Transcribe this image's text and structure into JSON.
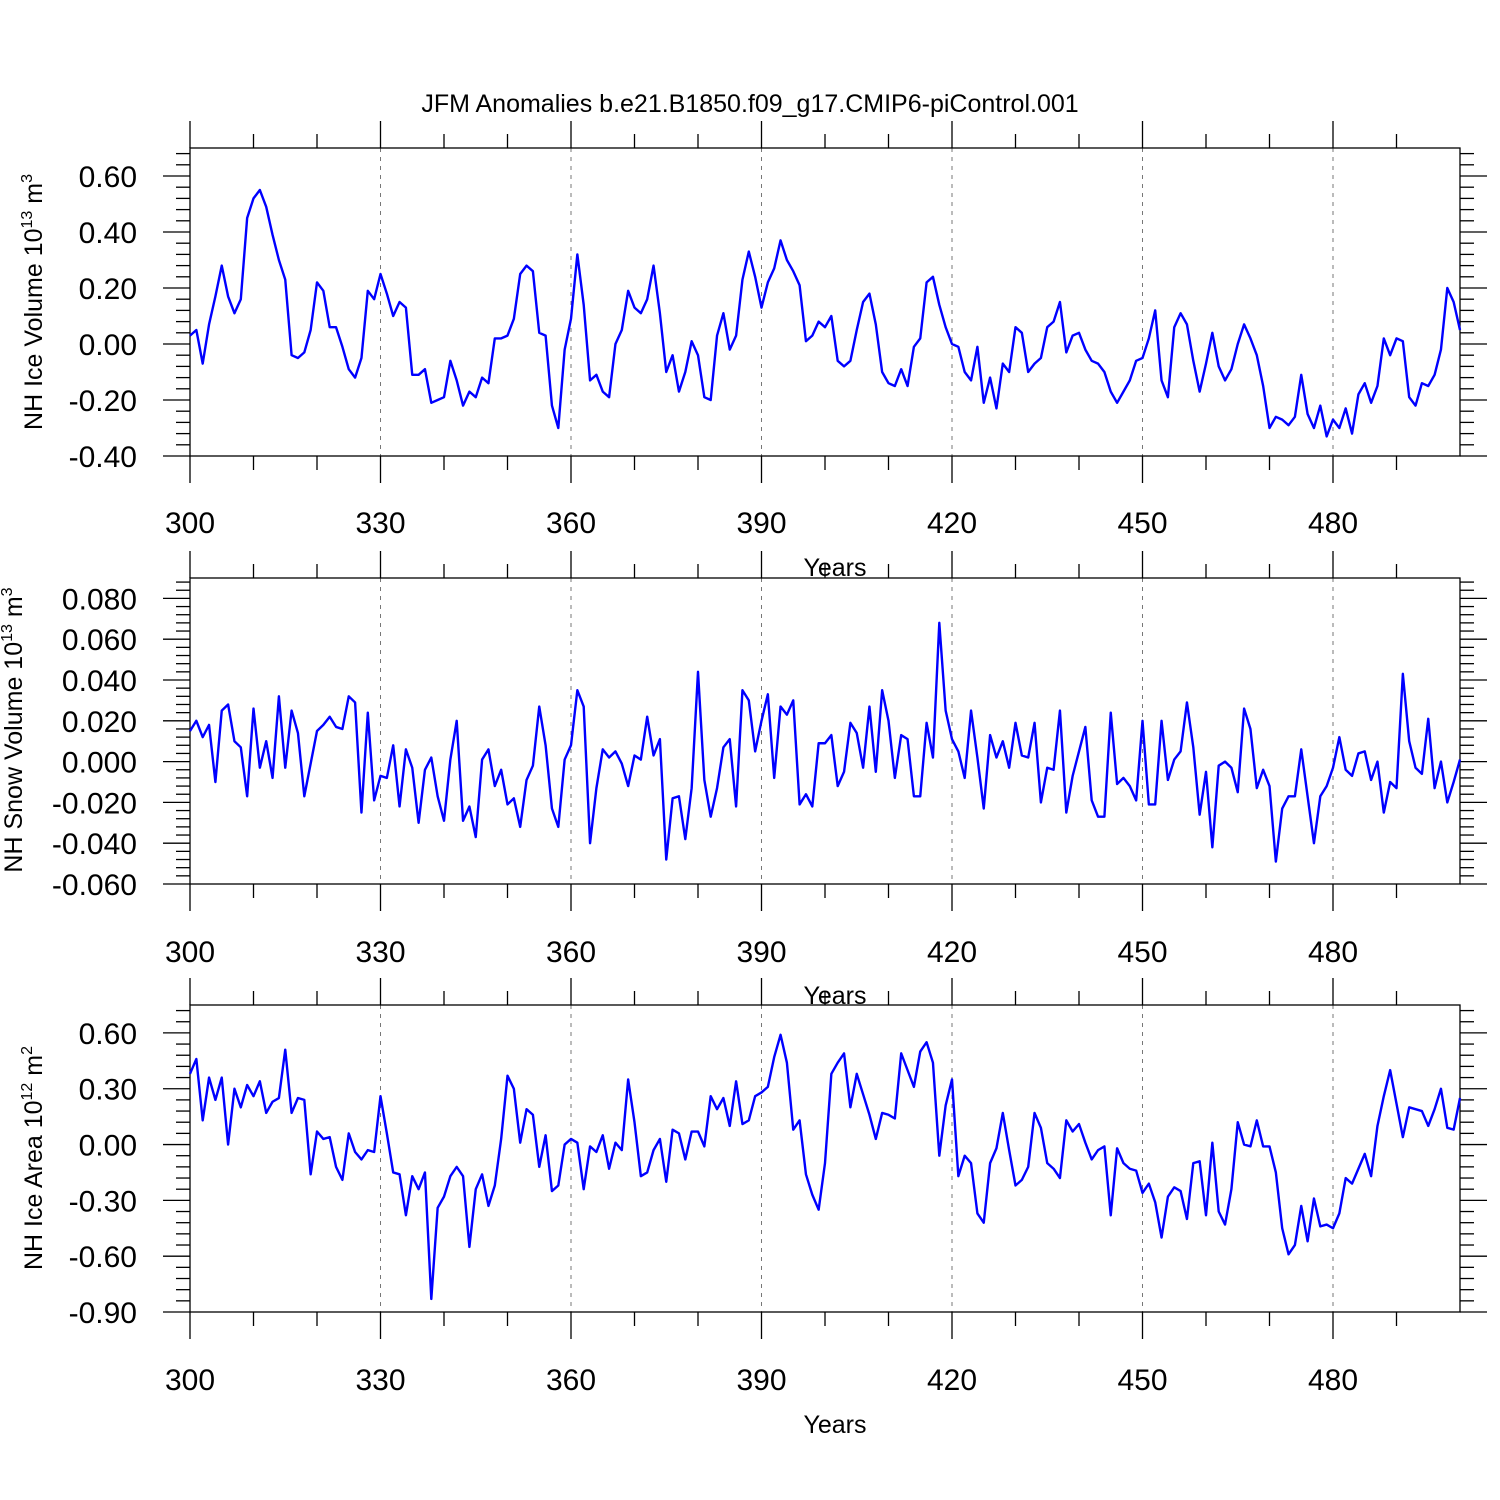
{
  "title": "JFM Anomalies b.e21.B1850.f09_g17.CMIP6-piControl.001",
  "colors": {
    "series": "#0000ff",
    "axis": "#000000",
    "grid": "#777777"
  },
  "chart_data": [
    {
      "type": "line",
      "name": "ice-volume",
      "ylabel_main": "NH Ice Volume 10",
      "ylabel_sup": "13",
      "ylabel_unit": "m",
      "ylabel_unit_sup": "3",
      "xlabel": "Years",
      "xlim": [
        300,
        500
      ],
      "ylim": [
        -0.4,
        0.7
      ],
      "yticks": [
        -0.4,
        -0.2,
        0.0,
        0.2,
        0.4,
        0.6
      ],
      "ytick_labels": [
        "-0.40",
        "-0.20",
        "0.00",
        "0.20",
        "0.40",
        "0.60"
      ],
      "xticks": [
        300,
        330,
        360,
        390,
        420,
        450,
        480
      ],
      "xtick_labels": [
        "300",
        "330",
        "360",
        "390",
        "420",
        "450",
        "480"
      ],
      "grid_x": [
        330,
        360,
        390,
        420,
        450,
        480
      ],
      "x_start": 300,
      "values": [
        0.03,
        0.05,
        -0.07,
        0.07,
        0.17,
        0.28,
        0.17,
        0.11,
        0.16,
        0.45,
        0.52,
        0.55,
        0.49,
        0.39,
        0.3,
        0.23,
        -0.04,
        -0.05,
        -0.03,
        0.05,
        0.22,
        0.19,
        0.06,
        0.06,
        -0.01,
        -0.09,
        -0.12,
        -0.05,
        0.19,
        0.16,
        0.25,
        0.18,
        0.1,
        0.15,
        0.13,
        -0.11,
        -0.11,
        -0.09,
        -0.21,
        -0.2,
        -0.19,
        -0.06,
        -0.13,
        -0.22,
        -0.17,
        -0.19,
        -0.12,
        -0.14,
        0.02,
        0.02,
        0.03,
        0.09,
        0.25,
        0.28,
        0.26,
        0.04,
        0.03,
        -0.22,
        -0.3,
        -0.02,
        0.09,
        0.32,
        0.14,
        -0.13,
        -0.11,
        -0.17,
        -0.19,
        0.0,
        0.05,
        0.19,
        0.13,
        0.11,
        0.16,
        0.28,
        0.11,
        -0.1,
        -0.04,
        -0.17,
        -0.1,
        0.01,
        -0.04,
        -0.19,
        -0.2,
        0.03,
        0.11,
        -0.02,
        0.03,
        0.23,
        0.33,
        0.24,
        0.13,
        0.22,
        0.27,
        0.37,
        0.3,
        0.26,
        0.21,
        0.01,
        0.03,
        0.08,
        0.06,
        0.1,
        -0.06,
        -0.08,
        -0.06,
        0.05,
        0.15,
        0.18,
        0.07,
        -0.1,
        -0.14,
        -0.15,
        -0.09,
        -0.15,
        -0.01,
        0.02,
        0.22,
        0.24,
        0.14,
        0.06,
        0.0,
        -0.01,
        -0.1,
        -0.13,
        -0.01,
        -0.21,
        -0.12,
        -0.23,
        -0.07,
        -0.1,
        0.06,
        0.04,
        -0.1,
        -0.07,
        -0.05,
        0.06,
        0.08,
        0.15,
        -0.03,
        0.03,
        0.04,
        -0.02,
        -0.06,
        -0.07,
        -0.1,
        -0.17,
        -0.21,
        -0.17,
        -0.13,
        -0.06,
        -0.05,
        0.02,
        0.12,
        -0.13,
        -0.19,
        0.06,
        0.11,
        0.07,
        -0.06,
        -0.17,
        -0.07,
        0.04,
        -0.08,
        -0.13,
        -0.09,
        0.0,
        0.07,
        0.02,
        -0.04,
        -0.15,
        -0.3,
        -0.26,
        -0.27,
        -0.29,
        -0.26,
        -0.11,
        -0.25,
        -0.3,
        -0.22,
        -0.33,
        -0.27,
        -0.3,
        -0.23,
        -0.32,
        -0.18,
        -0.14,
        -0.21,
        -0.15,
        0.02,
        -0.04,
        0.02,
        0.01,
        -0.19,
        -0.22,
        -0.14,
        -0.15,
        -0.11,
        -0.02,
        0.2,
        0.15,
        0.05
      ]
    },
    {
      "type": "line",
      "name": "snow-volume",
      "ylabel_main": "NH Snow Volume 10",
      "ylabel_sup": "13",
      "ylabel_unit": "m",
      "ylabel_unit_sup": "3",
      "xlabel": "Years",
      "xlim": [
        300,
        500
      ],
      "ylim": [
        -0.06,
        0.09
      ],
      "yticks": [
        -0.06,
        -0.04,
        -0.02,
        0.0,
        0.02,
        0.04,
        0.06,
        0.08
      ],
      "ytick_labels": [
        "-0.060",
        "-0.040",
        "-0.020",
        "0.000",
        "0.020",
        "0.040",
        "0.060",
        "0.080"
      ],
      "xticks": [
        300,
        330,
        360,
        390,
        420,
        450,
        480
      ],
      "xtick_labels": [
        "300",
        "330",
        "360",
        "390",
        "420",
        "450",
        "480"
      ],
      "grid_x": [
        330,
        360,
        390,
        420,
        450,
        480
      ],
      "x_start": 300,
      "values": [
        0.015,
        0.02,
        0.012,
        0.018,
        -0.01,
        0.025,
        0.028,
        0.01,
        0.007,
        -0.017,
        0.026,
        -0.003,
        0.01,
        -0.008,
        0.032,
        -0.003,
        0.025,
        0.014,
        -0.017,
        -0.001,
        0.015,
        0.018,
        0.022,
        0.017,
        0.016,
        0.032,
        0.029,
        -0.025,
        0.024,
        -0.019,
        -0.007,
        -0.008,
        0.008,
        -0.022,
        0.006,
        -0.003,
        -0.03,
        -0.004,
        0.002,
        -0.017,
        -0.029,
        0.001,
        0.02,
        -0.029,
        -0.022,
        -0.037,
        0.001,
        0.006,
        -0.012,
        -0.004,
        -0.021,
        -0.018,
        -0.032,
        -0.009,
        -0.002,
        0.027,
        0.008,
        -0.023,
        -0.032,
        0.001,
        0.008,
        0.035,
        0.027,
        -0.04,
        -0.013,
        0.006,
        0.002,
        0.005,
        -0.001,
        -0.012,
        0.003,
        0.001,
        0.022,
        0.003,
        0.011,
        -0.048,
        -0.018,
        -0.017,
        -0.038,
        -0.013,
        0.044,
        -0.009,
        -0.027,
        -0.013,
        0.007,
        0.011,
        -0.022,
        0.035,
        0.03,
        0.005,
        0.02,
        0.033,
        -0.008,
        0.027,
        0.023,
        0.03,
        -0.021,
        -0.016,
        -0.022,
        0.009,
        0.009,
        0.013,
        -0.012,
        -0.005,
        0.019,
        0.014,
        -0.003,
        0.027,
        -0.005,
        0.035,
        0.02,
        -0.008,
        0.013,
        0.011,
        -0.017,
        -0.017,
        0.019,
        0.002,
        0.068,
        0.025,
        0.011,
        0.005,
        -0.008,
        0.025,
        0.002,
        -0.023,
        0.013,
        0.002,
        0.01,
        -0.003,
        0.019,
        0.003,
        0.002,
        0.019,
        -0.02,
        -0.003,
        -0.004,
        0.025,
        -0.025,
        -0.007,
        0.005,
        0.017,
        -0.019,
        -0.027,
        -0.027,
        0.024,
        -0.011,
        -0.008,
        -0.012,
        -0.019,
        0.02,
        -0.021,
        -0.021,
        0.02,
        -0.009,
        0.001,
        0.005,
        0.029,
        0.007,
        -0.026,
        -0.005,
        -0.042,
        -0.002,
        0.0,
        -0.003,
        -0.015,
        0.026,
        0.016,
        -0.013,
        -0.004,
        -0.012,
        -0.049,
        -0.023,
        -0.017,
        -0.017,
        0.006,
        -0.017,
        -0.04,
        -0.017,
        -0.012,
        -0.003,
        0.012,
        -0.004,
        -0.007,
        0.004,
        0.005,
        -0.009,
        0.0,
        -0.025,
        -0.01,
        -0.013,
        0.043,
        0.01,
        -0.003,
        -0.006,
        0.021,
        -0.013,
        0.0,
        -0.02,
        -0.01,
        0.001
      ]
    },
    {
      "type": "line",
      "name": "ice-area",
      "ylabel_main": "NH Ice Area 10",
      "ylabel_sup": "12",
      "ylabel_unit": "m",
      "ylabel_unit_sup": "2",
      "xlabel": "Years",
      "xlim": [
        300,
        500
      ],
      "ylim": [
        -0.9,
        0.75
      ],
      "yticks": [
        -0.9,
        -0.6,
        -0.3,
        0.0,
        0.3,
        0.6
      ],
      "ytick_labels": [
        "-0.90",
        "-0.60",
        "-0.30",
        "0.00",
        "0.30",
        "0.60"
      ],
      "xticks": [
        300,
        330,
        360,
        390,
        420,
        450,
        480
      ],
      "xtick_labels": [
        "300",
        "330",
        "360",
        "390",
        "420",
        "450",
        "480"
      ],
      "grid_x": [
        330,
        360,
        390,
        420,
        450,
        480
      ],
      "x_start": 300,
      "values": [
        0.38,
        0.46,
        0.13,
        0.36,
        0.24,
        0.36,
        0.0,
        0.3,
        0.2,
        0.32,
        0.26,
        0.34,
        0.17,
        0.23,
        0.25,
        0.51,
        0.17,
        0.25,
        0.24,
        -0.16,
        0.07,
        0.03,
        0.04,
        -0.12,
        -0.19,
        0.06,
        -0.04,
        -0.08,
        -0.03,
        -0.04,
        0.26,
        0.06,
        -0.15,
        -0.16,
        -0.38,
        -0.17,
        -0.24,
        -0.15,
        -0.83,
        -0.34,
        -0.28,
        -0.17,
        -0.12,
        -0.17,
        -0.55,
        -0.24,
        -0.16,
        -0.33,
        -0.22,
        0.03,
        0.37,
        0.3,
        0.01,
        0.19,
        0.16,
        -0.12,
        0.05,
        -0.25,
        -0.22,
        0.0,
        0.03,
        0.01,
        -0.24,
        -0.01,
        -0.04,
        0.05,
        -0.13,
        0.01,
        -0.03,
        0.35,
        0.12,
        -0.17,
        -0.15,
        -0.03,
        0.03,
        -0.2,
        0.08,
        0.06,
        -0.08,
        0.07,
        0.07,
        -0.01,
        0.26,
        0.19,
        0.25,
        0.1,
        0.34,
        0.11,
        0.13,
        0.26,
        0.28,
        0.31,
        0.47,
        0.59,
        0.44,
        0.08,
        0.13,
        -0.16,
        -0.27,
        -0.35,
        -0.1,
        0.38,
        0.44,
        0.49,
        0.2,
        0.38,
        0.27,
        0.16,
        0.03,
        0.17,
        0.16,
        0.14,
        0.49,
        0.4,
        0.31,
        0.5,
        0.55,
        0.44,
        -0.06,
        0.21,
        0.35,
        -0.17,
        -0.06,
        -0.1,
        -0.37,
        -0.42,
        -0.1,
        -0.02,
        0.17,
        -0.03,
        -0.22,
        -0.19,
        -0.12,
        0.17,
        0.09,
        -0.1,
        -0.13,
        -0.18,
        0.13,
        0.07,
        0.11,
        0.01,
        -0.08,
        -0.03,
        -0.01,
        -0.38,
        -0.02,
        -0.1,
        -0.13,
        -0.14,
        -0.26,
        -0.21,
        -0.31,
        -0.5,
        -0.28,
        -0.23,
        -0.25,
        -0.4,
        -0.1,
        -0.09,
        -0.38,
        0.01,
        -0.36,
        -0.43,
        -0.24,
        0.12,
        0.0,
        -0.01,
        0.13,
        -0.01,
        -0.01,
        -0.15,
        -0.45,
        -0.59,
        -0.54,
        -0.33,
        -0.52,
        -0.29,
        -0.44,
        -0.43,
        -0.45,
        -0.37,
        -0.18,
        -0.21,
        -0.13,
        -0.05,
        -0.17,
        0.1,
        0.26,
        0.4,
        0.22,
        0.04,
        0.2,
        0.19,
        0.18,
        0.1,
        0.19,
        0.3,
        0.09,
        0.08,
        0.25
      ]
    }
  ]
}
